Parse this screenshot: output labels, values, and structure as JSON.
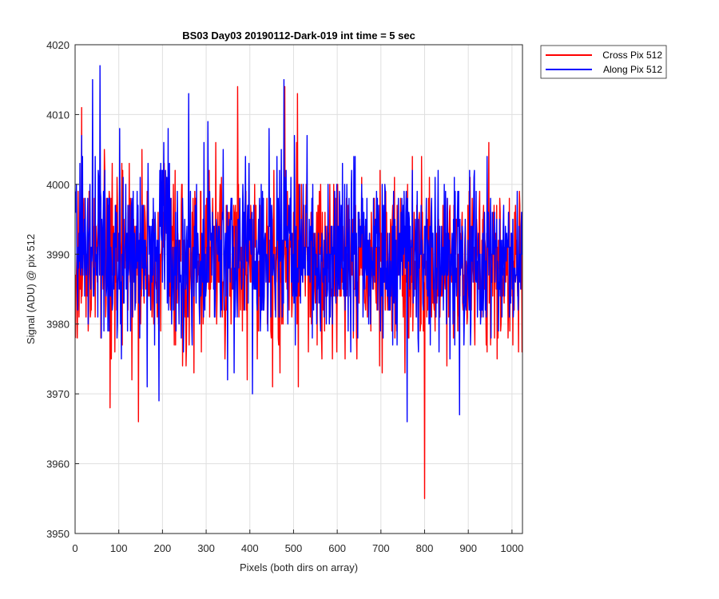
{
  "chart_data": {
    "type": "line",
    "title": "BS03 Day03 20190112-Dark-019 int time = 5 sec",
    "xlabel": "Pixels (both dirs on array)",
    "ylabel": "Signal (ADU) @ pix 512",
    "xlim": [
      0,
      1024
    ],
    "ylim": [
      3950,
      4020
    ],
    "xticks": [
      0,
      100,
      200,
      300,
      400,
      500,
      600,
      700,
      800,
      900,
      1000
    ],
    "yticks": [
      3950,
      3960,
      3970,
      3980,
      3990,
      4000,
      4010,
      4020
    ],
    "grid": true,
    "legend_position": "outside-top-right",
    "series": [
      {
        "name": "Cross Pix 512",
        "color": "#ff0000",
        "x_start": 1,
        "x_step": 1,
        "count": 1024,
        "mean": 3989,
        "std": 6,
        "min": 3955,
        "max": 4014,
        "notable_points": [
          [
            1,
            3978
          ],
          [
            15,
            4011
          ],
          [
            80,
            3968
          ],
          [
            145,
            3966
          ],
          [
            372,
            4014
          ],
          [
            480,
            4014
          ],
          [
            509,
            4013
          ],
          [
            800,
            3955
          ]
        ]
      },
      {
        "name": "Along Pix 512",
        "color": "#0000ff",
        "x_start": 1,
        "x_step": 1,
        "count": 1024,
        "mean": 3990,
        "std": 6,
        "min": 3966,
        "max": 4017,
        "notable_points": [
          [
            40,
            4015
          ],
          [
            57,
            4017
          ],
          [
            260,
            4013
          ],
          [
            478,
            4015
          ],
          [
            760,
            3966
          ],
          [
            880,
            3967
          ]
        ]
      }
    ]
  }
}
